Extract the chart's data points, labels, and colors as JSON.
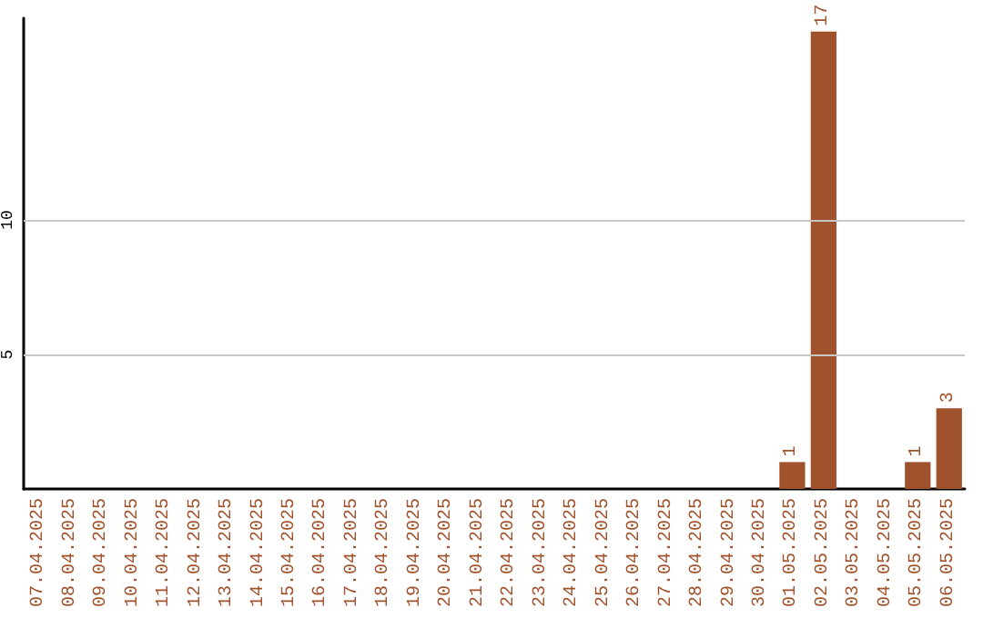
{
  "chart_data": {
    "type": "bar",
    "categories": [
      "07.04.2025",
      "08.04.2025",
      "09.04.2025",
      "10.04.2025",
      "11.04.2025",
      "12.04.2025",
      "13.04.2025",
      "14.04.2025",
      "15.04.2025",
      "16.04.2025",
      "17.04.2025",
      "18.04.2025",
      "19.04.2025",
      "20.04.2025",
      "21.04.2025",
      "22.04.2025",
      "23.04.2025",
      "24.04.2025",
      "25.04.2025",
      "26.04.2025",
      "27.04.2025",
      "28.04.2025",
      "29.04.2025",
      "30.04.2025",
      "01.05.2025",
      "02.05.2025",
      "03.05.2025",
      "04.05.2025",
      "05.05.2025",
      "06.05.2025"
    ],
    "values": [
      0,
      0,
      0,
      0,
      0,
      0,
      0,
      0,
      0,
      0,
      0,
      0,
      0,
      0,
      0,
      0,
      0,
      0,
      0,
      0,
      0,
      0,
      0,
      0,
      1,
      17,
      0,
      0,
      1,
      3
    ],
    "value_labels": [
      null,
      null,
      null,
      null,
      null,
      null,
      null,
      null,
      null,
      null,
      null,
      null,
      null,
      null,
      null,
      null,
      null,
      null,
      null,
      null,
      null,
      null,
      null,
      null,
      "1",
      "17",
      null,
      null,
      "1",
      "3"
    ],
    "color": "#a0522d",
    "ylim": [
      0,
      17.5
    ],
    "yticks": [
      5,
      10
    ],
    "grid": "y"
  }
}
